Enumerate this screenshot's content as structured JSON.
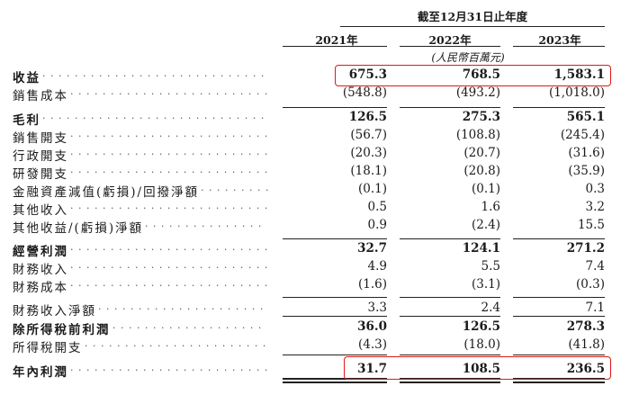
{
  "header": {
    "period": "截至12月31日止年度",
    "years": [
      "2021年",
      "2022年",
      "2023年"
    ],
    "unit": "(人民幣百萬元)"
  },
  "rows": [
    {
      "label": "收益",
      "bold": true,
      "values": [
        "675.3",
        "768.5",
        "1,583.1"
      ]
    },
    {
      "label": "銷售成本",
      "bold": false,
      "values": [
        "(548.8)",
        "(493.2)",
        "(1,018.0)"
      ]
    },
    {
      "label": "毛利",
      "bold": true,
      "values": [
        "126.5",
        "275.3",
        "565.1"
      ]
    },
    {
      "label": "銷售開支",
      "bold": false,
      "values": [
        "(56.7)",
        "(108.8)",
        "(245.4)"
      ]
    },
    {
      "label": "行政開支",
      "bold": false,
      "values": [
        "(20.3)",
        "(20.7)",
        "(31.6)"
      ]
    },
    {
      "label": "研發開支",
      "bold": false,
      "values": [
        "(18.1)",
        "(20.8)",
        "(35.9)"
      ]
    },
    {
      "label": "金融資產減值(虧損)/回撥淨額",
      "bold": false,
      "values": [
        "(0.1)",
        "(0.1)",
        "0.3"
      ]
    },
    {
      "label": "其他收入",
      "bold": false,
      "values": [
        "0.5",
        "1.6",
        "3.2"
      ]
    },
    {
      "label": "其他收益/(虧損)淨額",
      "bold": false,
      "values": [
        "0.9",
        "(2.4)",
        "15.5"
      ]
    },
    {
      "label": "經營利潤",
      "bold": true,
      "values": [
        "32.7",
        "124.1",
        "271.2"
      ]
    },
    {
      "label": "財務收入",
      "bold": false,
      "values": [
        "4.9",
        "5.5",
        "7.4"
      ]
    },
    {
      "label": "財務成本",
      "bold": false,
      "values": [
        "(1.6)",
        "(3.1)",
        "(0.3)"
      ]
    },
    {
      "label": "財務收入淨額",
      "bold": false,
      "values": [
        "3.3",
        "2.4",
        "7.1"
      ]
    },
    {
      "label": "除所得稅前利潤",
      "bold": true,
      "values": [
        "36.0",
        "126.5",
        "278.3"
      ]
    },
    {
      "label": "所得稅開支",
      "bold": false,
      "values": [
        "(4.3)",
        "(18.0)",
        "(41.8)"
      ]
    },
    {
      "label": "年內利潤",
      "bold": true,
      "values": [
        "31.7",
        "108.5",
        "236.5"
      ]
    }
  ],
  "highlight_color": "#e01919"
}
